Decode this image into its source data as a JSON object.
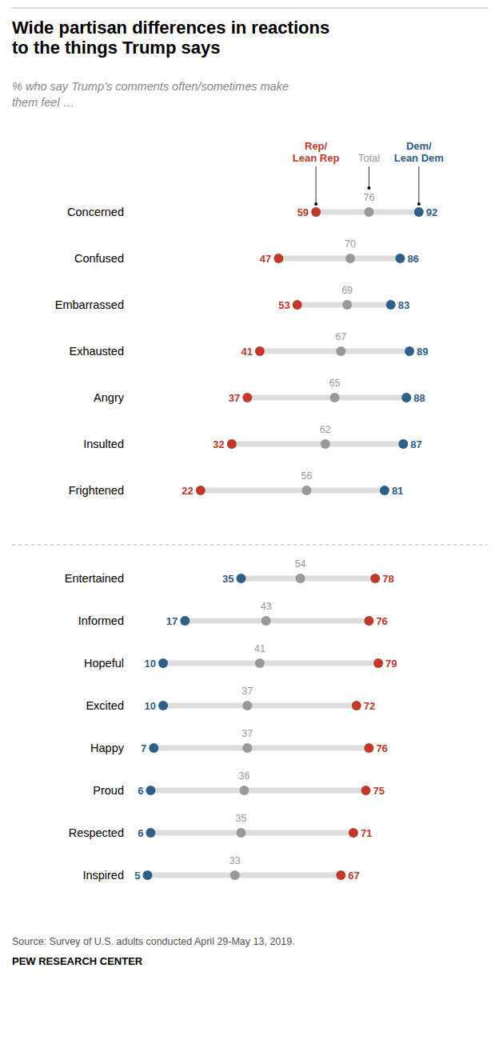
{
  "chart_data": {
    "type": "dot",
    "title": "Wide partisan differences in reactions\nto the things Trump says",
    "subtitle": "% who say Trump’s comments often/sometimes make\nthem feel …",
    "source": "Source: Survey of U.S. adults conducted April 29-May 13, 2019.",
    "footer": "PEW RESEARCH CENTER",
    "categories": [
      "Concerned",
      "Confused",
      "Embarrassed",
      "Exhausted",
      "Angry",
      "Insulted",
      "Frightened",
      "Entertained",
      "Informed",
      "Hopeful",
      "Excited",
      "Happy",
      "Proud",
      "Respected",
      "Inspired"
    ],
    "series": [
      {
        "name": "Rep/\nLean Rep",
        "color": "#C0392B",
        "values": [
          59,
          47,
          53,
          41,
          37,
          32,
          22,
          78,
          76,
          79,
          72,
          76,
          75,
          71,
          67
        ]
      },
      {
        "name": "Total",
        "color": "#999999",
        "values": [
          76,
          70,
          69,
          67,
          65,
          62,
          56,
          54,
          43,
          41,
          37,
          37,
          36,
          35,
          33
        ]
      },
      {
        "name": "Dem/\nLean Dem",
        "color": "#2E5F8A",
        "values": [
          92,
          86,
          83,
          89,
          88,
          87,
          81,
          35,
          17,
          10,
          10,
          7,
          6,
          6,
          5
        ]
      }
    ],
    "xlim": [
      0,
      100
    ],
    "tick_labels": false,
    "data_labels": true,
    "legend": "top"
  }
}
